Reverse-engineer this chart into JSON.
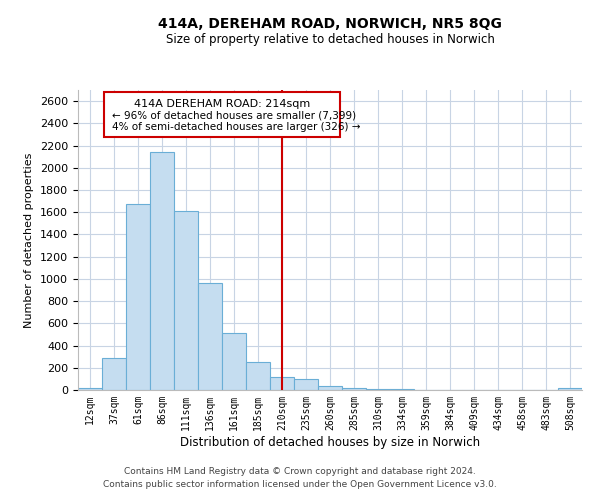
{
  "title": "414A, DEREHAM ROAD, NORWICH, NR5 8QG",
  "subtitle": "Size of property relative to detached houses in Norwich",
  "xlabel": "Distribution of detached houses by size in Norwich",
  "ylabel": "Number of detached properties",
  "bar_color": "#c5ddf0",
  "bar_edge_color": "#6aaed6",
  "bin_labels": [
    "12sqm",
    "37sqm",
    "61sqm",
    "86sqm",
    "111sqm",
    "136sqm",
    "161sqm",
    "185sqm",
    "210sqm",
    "235sqm",
    "260sqm",
    "285sqm",
    "310sqm",
    "334sqm",
    "359sqm",
    "384sqm",
    "409sqm",
    "434sqm",
    "458sqm",
    "483sqm",
    "508sqm"
  ],
  "bar_heights": [
    20,
    290,
    1670,
    2140,
    1610,
    960,
    510,
    255,
    120,
    100,
    35,
    18,
    5,
    5,
    3,
    3,
    2,
    2,
    1,
    2,
    18
  ],
  "ylim": [
    0,
    2700
  ],
  "yticks": [
    0,
    200,
    400,
    600,
    800,
    1000,
    1200,
    1400,
    1600,
    1800,
    2000,
    2200,
    2400,
    2600
  ],
  "vline_x": 8,
  "vline_color": "#cc0000",
  "annotation_title": "414A DEREHAM ROAD: 214sqm",
  "annotation_line1": "← 96% of detached houses are smaller (7,399)",
  "annotation_line2": "4% of semi-detached houses are larger (326) →",
  "footer1": "Contains HM Land Registry data © Crown copyright and database right 2024.",
  "footer2": "Contains public sector information licensed under the Open Government Licence v3.0.",
  "background_color": "#ffffff",
  "grid_color": "#c8d4e4"
}
